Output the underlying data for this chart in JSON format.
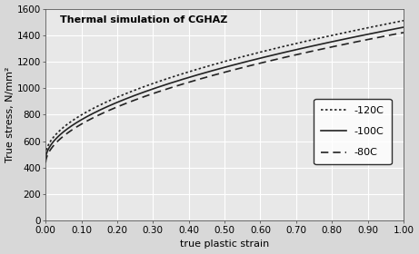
{
  "title": "Thermal simulation of CGHAZ",
  "xlabel": "true plastic strain",
  "ylabel": "True stress, N/mm²",
  "xlim": [
    0.0,
    1.0
  ],
  "ylim": [
    0,
    1600
  ],
  "xticks": [
    0.0,
    0.1,
    0.2,
    0.3,
    0.4,
    0.5,
    0.6,
    0.7,
    0.8,
    0.9,
    1.0
  ],
  "yticks": [
    0,
    200,
    400,
    600,
    800,
    1000,
    1200,
    1400,
    1600
  ],
  "curves": [
    {
      "label": "-120C",
      "linestyle": "dotted",
      "color": "#222222",
      "sigma0": 490,
      "K": 1020,
      "n": 0.52
    },
    {
      "label": "-100C",
      "linestyle": "solid",
      "color": "#222222",
      "sigma0": 460,
      "K": 1000,
      "n": 0.52
    },
    {
      "label": "-80C",
      "linestyle": "dashed",
      "color": "#222222",
      "sigma0": 430,
      "K": 990,
      "n": 0.52
    }
  ],
  "background_color": "#d8d8d8",
  "plot_bg_color": "#e8e8e8",
  "grid_color": "#ffffff",
  "title_fontsize": 8,
  "label_fontsize": 8,
  "tick_fontsize": 7.5
}
